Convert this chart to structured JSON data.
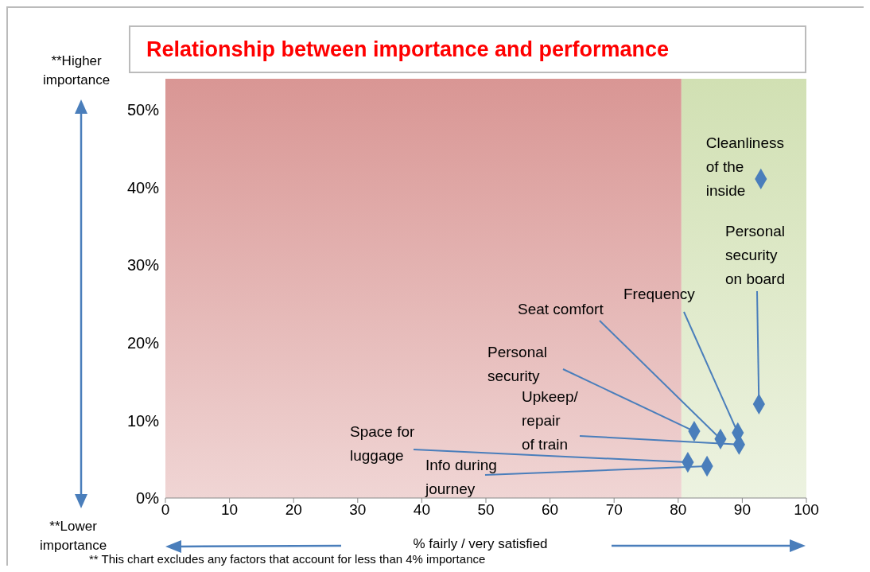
{
  "chart_data": {
    "type": "scatter",
    "title": "Relationship between importance and performance",
    "xlabel": "% fairly / very satisfied",
    "x": [
      92.9,
      92.6,
      89.3,
      82.5,
      86.6,
      89.5,
      81.5,
      84.5
    ],
    "series": [
      {
        "color": "#4a7ebb",
        "values": [
          41.1,
          12.1,
          8.4,
          8.6,
          7.6,
          6.9,
          4.6,
          4.1
        ]
      }
    ],
    "xlim": [
      0,
      100
    ],
    "xticks": [
      0,
      10,
      20,
      30,
      40,
      50,
      60,
      70,
      80,
      90,
      100
    ],
    "ylim": [
      0,
      54
    ],
    "yticks": [
      {
        "value": 0,
        "label": "0%"
      },
      {
        "value": 10,
        "label": "10%"
      },
      {
        "value": 20,
        "label": "20%"
      },
      {
        "value": 30,
        "label": "30%"
      },
      {
        "value": 40,
        "label": "40%"
      },
      {
        "value": 50,
        "label": "50%"
      }
    ],
    "grid": false,
    "marker": "diamond",
    "bands": [
      {
        "axis": "x",
        "from": 0,
        "to": 80.5,
        "color": "#d99694"
      },
      {
        "axis": "x",
        "from": 80.5,
        "to": 100,
        "color": "#d1e0b3"
      }
    ],
    "annotations": [
      {
        "text": "Cleanliness of the inside",
        "x": 92.9,
        "y": 41.1
      },
      {
        "text": "Personal security on board",
        "x": 92.6,
        "y": 12.1
      },
      {
        "text": "Frequency",
        "x": 89.3,
        "y": 8.4
      },
      {
        "text": "Personal security",
        "x": 82.5,
        "y": 8.6
      },
      {
        "text": "Seat comfort",
        "x": 86.6,
        "y": 7.6
      },
      {
        "text": "Upkeep/ repair of train",
        "x": 89.5,
        "y": 6.9
      },
      {
        "text": "Space for luggage",
        "x": 81.5,
        "y": 4.6
      },
      {
        "text": "Info during journey",
        "x": 84.5,
        "y": 4.1
      },
      "**Higher importance",
      "**Lower importance",
      "** This chart excludes any factors that account for less than 4% importance"
    ]
  }
}
